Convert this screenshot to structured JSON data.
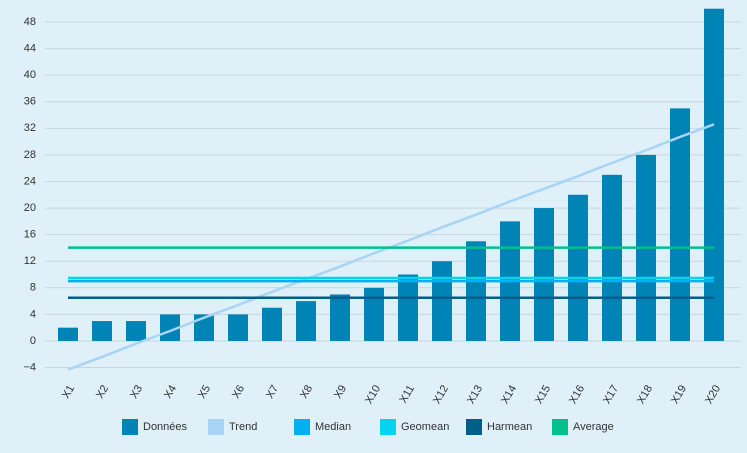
{
  "chart_data": {
    "type": "bar",
    "categories": [
      "X1",
      "X2",
      "X3",
      "X4",
      "X5",
      "X6",
      "X7",
      "X8",
      "X9",
      "X10",
      "X11",
      "X12",
      "X13",
      "X14",
      "X15",
      "X16",
      "X17",
      "X18",
      "X19",
      "X20"
    ],
    "series": [
      {
        "name": "Données",
        "type": "bar",
        "color": "#0083b5",
        "values": [
          2,
          3,
          3,
          4,
          4,
          4,
          5,
          6,
          7,
          8,
          10,
          12,
          15,
          18,
          20,
          22,
          25,
          28,
          35,
          50
        ]
      },
      {
        "name": "Trend",
        "type": "line",
        "color": "#a8d4f5",
        "values": [
          -4.3,
          -2.4,
          -0.4,
          1.5,
          3.5,
          5.4,
          7.4,
          9.3,
          11.2,
          13.2,
          15.1,
          17.1,
          19.0,
          21.0,
          22.9,
          24.8,
          26.8,
          28.7,
          30.7,
          32.6
        ]
      },
      {
        "name": "Median",
        "type": "line",
        "color": "#00b0f0",
        "values": [
          9,
          9,
          9,
          9,
          9,
          9,
          9,
          9,
          9,
          9,
          9,
          9,
          9,
          9,
          9,
          9,
          9,
          9,
          9,
          9
        ]
      },
      {
        "name": "Geomean",
        "type": "line",
        "color": "#00d4f0",
        "values": [
          9.47,
          9.47,
          9.47,
          9.47,
          9.47,
          9.47,
          9.47,
          9.47,
          9.47,
          9.47,
          9.47,
          9.47,
          9.47,
          9.47,
          9.47,
          9.47,
          9.47,
          9.47,
          9.47,
          9.47
        ]
      },
      {
        "name": "Harmean",
        "type": "line",
        "color": "#005f8a",
        "values": [
          6.5,
          6.5,
          6.5,
          6.5,
          6.5,
          6.5,
          6.5,
          6.5,
          6.5,
          6.5,
          6.5,
          6.5,
          6.5,
          6.5,
          6.5,
          6.5,
          6.5,
          6.5,
          6.5,
          6.5
        ]
      },
      {
        "name": "Average",
        "type": "line",
        "color": "#00c08b",
        "values": [
          14.05,
          14.05,
          14.05,
          14.05,
          14.05,
          14.05,
          14.05,
          14.05,
          14.05,
          14.05,
          14.05,
          14.05,
          14.05,
          14.05,
          14.05,
          14.05,
          14.05,
          14.05,
          14.05,
          14.05
        ]
      }
    ],
    "ylim": [
      -5,
      50
    ],
    "yticks": [
      {
        "value": -4,
        "label": "−4"
      },
      0,
      4,
      8,
      12,
      16,
      20,
      24,
      28,
      32,
      36,
      40,
      44,
      48
    ],
    "grid": true,
    "legend": "bottom"
  }
}
